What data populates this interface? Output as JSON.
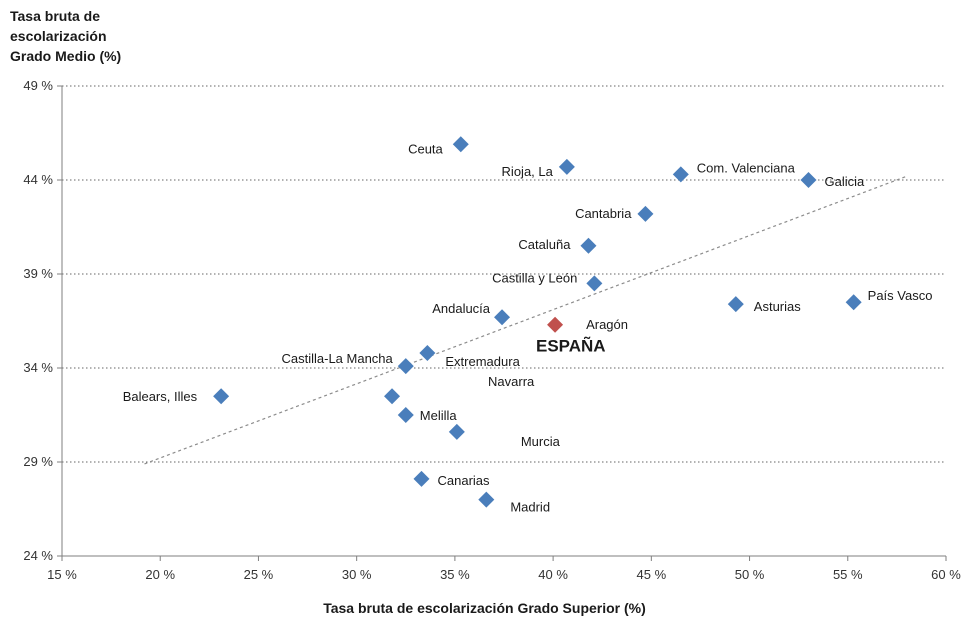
{
  "chart_data": {
    "type": "scatter",
    "ylabel_lines": [
      "Tasa bruta de",
      "escolarización",
      "Grado Medio (%)"
    ],
    "xlabel": "Tasa bruta de escolarización Grado Superior (%)",
    "xlim": [
      15,
      60
    ],
    "ylim": [
      24,
      49
    ],
    "x_ticks": [
      15,
      20,
      25,
      30,
      35,
      40,
      45,
      50,
      55,
      60
    ],
    "y_ticks": [
      24,
      29,
      34,
      39,
      44,
      49
    ],
    "x_tick_labels": [
      "15 %",
      "20 %",
      "25 %",
      "30 %",
      "35 %",
      "40 %",
      "45 %",
      "50 %",
      "55 %",
      "60 %"
    ],
    "y_tick_labels": [
      "24 %",
      "29 %",
      "34 %",
      "39 %",
      "44 %",
      "49 %"
    ],
    "grid": "horizontal-dotted",
    "colors": {
      "point": "#4a7ebb",
      "highlight": "#c0504d",
      "trend": "#8c8c8c",
      "axis": "#7f7f7f"
    },
    "trendline": {
      "from": [
        19.2,
        28.9
      ],
      "to": [
        58.0,
        44.2
      ]
    },
    "points": [
      {
        "label": "Ceuta",
        "x": 35.3,
        "y": 45.9
      },
      {
        "label": "Rioja, La",
        "x": 40.7,
        "y": 44.7
      },
      {
        "label": "Com. Valenciana",
        "x": 46.5,
        "y": 44.3
      },
      {
        "label": "Galicia",
        "x": 53.0,
        "y": 44.0
      },
      {
        "label": "Cantabria",
        "x": 44.7,
        "y": 42.2
      },
      {
        "label": "Cataluña",
        "x": 41.8,
        "y": 40.5
      },
      {
        "label": "Castilla y León",
        "x": 42.1,
        "y": 38.5
      },
      {
        "label": "Asturias",
        "x": 49.3,
        "y": 37.4
      },
      {
        "label": "País Vasco",
        "x": 55.3,
        "y": 37.5
      },
      {
        "label": "Andalucía",
        "x": 37.4,
        "y": 36.7
      },
      {
        "label": "Aragón",
        "x": 40.1,
        "y": 36.3,
        "highlight": true
      },
      {
        "label": "Castilla-La Mancha",
        "x": 32.5,
        "y": 34.1
      },
      {
        "label": "Extremadura",
        "x": 33.6,
        "y": 34.8
      },
      {
        "label": "Navarra",
        "x": 31.8,
        "y": 32.5
      },
      {
        "label": "Balears, Illes",
        "x": 23.1,
        "y": 32.5
      },
      {
        "label": "Melilla",
        "x": 32.5,
        "y": 31.5
      },
      {
        "label": "Murcia",
        "x": 35.1,
        "y": 30.6
      },
      {
        "label": "Canarias",
        "x": 33.3,
        "y": 28.1
      },
      {
        "label": "Madrid",
        "x": 36.6,
        "y": 27.0
      }
    ],
    "annotations": [
      {
        "text": "ESPAÑA",
        "x": 40.9,
        "y": 35.2,
        "style": "bold"
      }
    ]
  }
}
